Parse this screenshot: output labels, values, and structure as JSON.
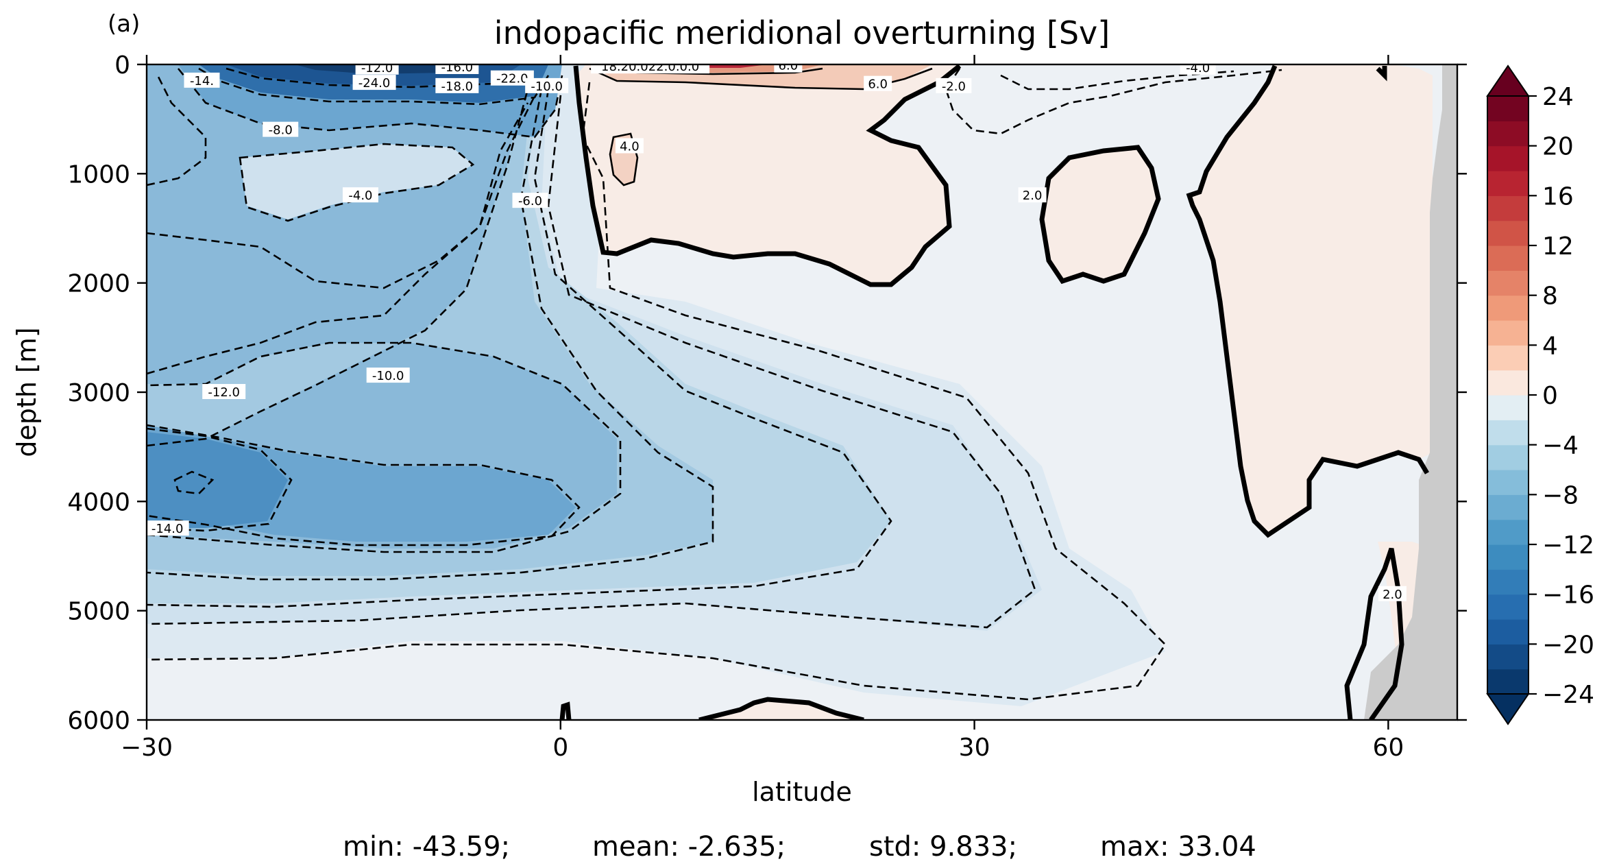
{
  "panel_label": "(a)",
  "chart_data": {
    "type": "heatmap",
    "title": "indopacific meridional overturning [Sv]",
    "xlabel": "latitude",
    "ylabel": "depth [m]",
    "xlim": [
      -30,
      65
    ],
    "ylim": [
      6000,
      0
    ],
    "x_ticks": [
      -30,
      0,
      30,
      60
    ],
    "x_tick_labels": [
      "−30",
      "0",
      "30",
      "60"
    ],
    "y_ticks": [
      0,
      1000,
      2000,
      3000,
      4000,
      5000,
      6000
    ],
    "y_tick_labels": [
      "0",
      "1000",
      "2000",
      "3000",
      "4000",
      "5000",
      "6000"
    ],
    "colormap": "RdBu_r",
    "colorbar": {
      "levels_min": -24,
      "levels_max": 24,
      "level_step": 2,
      "extend": "both",
      "ticks": [
        24,
        20,
        16,
        12,
        8,
        4,
        0,
        -4,
        -8,
        -12,
        -16,
        -20,
        -24
      ],
      "tick_labels": [
        "24",
        "20",
        "16",
        "12",
        "8",
        "4",
        "0",
        "−4",
        "−8",
        "−12",
        "−16",
        "−20",
        "−24"
      ]
    },
    "contour_labels": [
      {
        "text": "-12.0",
        "lat": -13.3,
        "depth": 30
      },
      {
        "text": "-16.0",
        "lat": -7.5,
        "depth": 25
      },
      {
        "text": "-24.0",
        "lat": -13.5,
        "depth": 170
      },
      {
        "text": "-18.0",
        "lat": -7.5,
        "depth": 200
      },
      {
        "text": "-22.0",
        "lat": -3.5,
        "depth": 130
      },
      {
        "text": "-14.",
        "lat": -26.0,
        "depth": 150
      },
      {
        "text": "-10.0",
        "lat": -1.0,
        "depth": 200
      },
      {
        "text": "-8.0",
        "lat": -20.3,
        "depth": 600
      },
      {
        "text": "-4.0",
        "lat": -14.5,
        "depth": 1200
      },
      {
        "text": "-6.0",
        "lat": -2.2,
        "depth": 1250
      },
      {
        "text": "18.20.022.0.0.0",
        "lat": 6.5,
        "depth": 20
      },
      {
        "text": "6.0",
        "lat": 16.5,
        "depth": 10
      },
      {
        "text": "6.0",
        "lat": 23.0,
        "depth": 180
      },
      {
        "text": "4.0",
        "lat": 5.0,
        "depth": 750
      },
      {
        "text": "-2.0",
        "lat": 28.5,
        "depth": 200
      },
      {
        "text": "-4.0",
        "lat": 46.2,
        "depth": 30
      },
      {
        "text": "2.0",
        "lat": 34.2,
        "depth": 1200
      },
      {
        "text": "-12.0",
        "lat": -24.4,
        "depth": 3000
      },
      {
        "text": "-10.0",
        "lat": -12.5,
        "depth": 2850
      },
      {
        "text": "-14.0",
        "lat": -28.5,
        "depth": 4250
      },
      {
        "text": "2.0",
        "lat": 60.3,
        "depth": 4850
      }
    ]
  },
  "stats": {
    "min": "min: -43.59;",
    "mean": "mean: -2.635;",
    "std": "std: 9.833;",
    "max": "max: 33.04"
  }
}
